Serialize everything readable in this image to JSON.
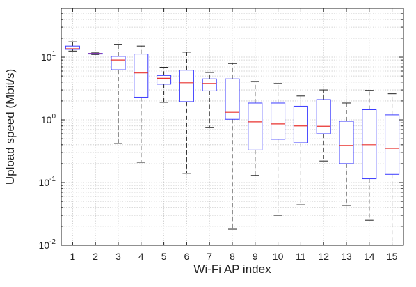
{
  "chart_data": {
    "type": "box",
    "title": "",
    "xlabel": "Wi-Fi AP index",
    "ylabel": "Upload speed (Mbit/s)",
    "yscale": "log",
    "ylim": [
      0.01,
      60
    ],
    "grid": true,
    "legend": "none",
    "categories": [
      "1",
      "2",
      "3",
      "4",
      "5",
      "6",
      "7",
      "8",
      "9",
      "10",
      "11",
      "12",
      "13",
      "14",
      "15"
    ],
    "yticks": [
      {
        "value": 0.01,
        "base": "10",
        "exp": "-2"
      },
      {
        "value": 0.1,
        "base": "10",
        "exp": "-1"
      },
      {
        "value": 1,
        "base": "10",
        "exp": "0"
      },
      {
        "value": 10,
        "base": "10",
        "exp": "1"
      }
    ],
    "boxes": [
      {
        "category": "1",
        "whisker_low": 12.5,
        "q1": 13.3,
        "median": 13.6,
        "q3": 15.0,
        "whisker_high": 17.5
      },
      {
        "category": "2",
        "whisker_low": 11.0,
        "q1": 11.2,
        "median": 11.3,
        "q3": 11.5,
        "whisker_high": 11.7
      },
      {
        "category": "3",
        "whisker_low": 0.42,
        "q1": 6.3,
        "median": 9.0,
        "q3": 10.3,
        "whisker_high": 16.0
      },
      {
        "category": "4",
        "whisker_low": 0.21,
        "q1": 2.3,
        "median": 5.6,
        "q3": 11.2,
        "whisker_high": 15.0
      },
      {
        "category": "5",
        "whisker_low": 1.9,
        "q1": 3.7,
        "median": 4.6,
        "q3": 5.1,
        "whisker_high": 6.9
      },
      {
        "category": "6",
        "whisker_low": 0.14,
        "q1": 1.95,
        "median": 3.9,
        "q3": 6.2,
        "whisker_high": 12.0
      },
      {
        "category": "7",
        "whisker_low": 0.75,
        "q1": 2.9,
        "median": 3.8,
        "q3": 4.5,
        "whisker_high": 5.7
      },
      {
        "category": "8",
        "whisker_low": 0.018,
        "q1": 1.02,
        "median": 1.32,
        "q3": 4.5,
        "whisker_high": 7.9
      },
      {
        "category": "9",
        "whisker_low": 0.13,
        "q1": 0.33,
        "median": 0.93,
        "q3": 1.85,
        "whisker_high": 4.1
      },
      {
        "category": "10",
        "whisker_low": 0.03,
        "q1": 0.49,
        "median": 0.86,
        "q3": 1.85,
        "whisker_high": 3.8
      },
      {
        "category": "11",
        "whisker_low": 0.044,
        "q1": 0.43,
        "median": 0.8,
        "q3": 1.65,
        "whisker_high": 2.4
      },
      {
        "category": "12",
        "whisker_low": 0.22,
        "q1": 0.6,
        "median": 0.79,
        "q3": 2.1,
        "whisker_high": 3.0
      },
      {
        "category": "13",
        "whisker_low": 0.043,
        "q1": 0.2,
        "median": 0.39,
        "q3": 0.95,
        "whisker_high": 1.85
      },
      {
        "category": "14",
        "whisker_low": 0.025,
        "q1": 0.115,
        "median": 0.4,
        "q3": 1.45,
        "whisker_high": 2.95
      },
      {
        "category": "15",
        "whisker_low": 0.01,
        "q1": 0.135,
        "median": 0.35,
        "q3": 1.2,
        "whisker_high": 2.6
      }
    ],
    "colors": {
      "box": "#3b3bff",
      "median": "#e8322f",
      "whisker": "#222222",
      "grid": "#c8c8c8",
      "axis": "#222222"
    }
  }
}
